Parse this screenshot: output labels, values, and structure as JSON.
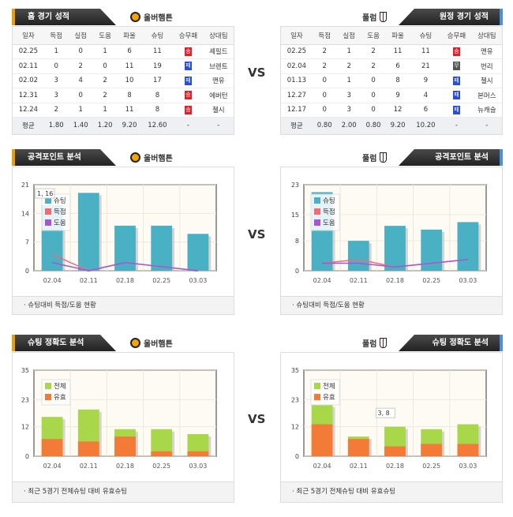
{
  "vs": "VS",
  "home_team": "울버햄튼",
  "away_team": "풀럼",
  "home_table": {
    "title": "홈 경기 성적",
    "columns": [
      "일자",
      "득점",
      "실점",
      "도움",
      "파울",
      "슈팅",
      "승무패",
      "상대팀"
    ],
    "rows": [
      [
        "02.25",
        "1",
        "0",
        "1",
        "6",
        "11",
        "승",
        "셰필드"
      ],
      [
        "02.11",
        "0",
        "2",
        "0",
        "11",
        "19",
        "패",
        "브렌트"
      ],
      [
        "02.02",
        "3",
        "4",
        "2",
        "10",
        "17",
        "패",
        "맨유"
      ],
      [
        "12.31",
        "3",
        "0",
        "2",
        "8",
        "8",
        "승",
        "에버턴"
      ],
      [
        "12.24",
        "2",
        "1",
        "1",
        "11",
        "8",
        "승",
        "첼시"
      ]
    ],
    "avg": [
      "평균",
      "1.80",
      "1.40",
      "1.20",
      "9.20",
      "12.60",
      "-",
      "-"
    ]
  },
  "away_table": {
    "title": "원정 경기 성적",
    "columns": [
      "일자",
      "득점",
      "실점",
      "도움",
      "파울",
      "슈팅",
      "승무패",
      "상대팀"
    ],
    "rows": [
      [
        "02.25",
        "2",
        "1",
        "2",
        "11",
        "11",
        "승",
        "맨유"
      ],
      [
        "02.04",
        "2",
        "2",
        "2",
        "6",
        "21",
        "무",
        "번리"
      ],
      [
        "01.13",
        "0",
        "1",
        "0",
        "8",
        "9",
        "패",
        "첼시"
      ],
      [
        "12.27",
        "0",
        "3",
        "0",
        "9",
        "4",
        "패",
        "본머스"
      ],
      [
        "12.17",
        "0",
        "3",
        "0",
        "12",
        "6",
        "패",
        "뉴캐슬"
      ]
    ],
    "avg": [
      "평균",
      "0.80",
      "2.00",
      "0.80",
      "9.20",
      "10.20",
      "-",
      "-"
    ]
  },
  "result_colors": {
    "승": "#e0202a",
    "패": "#2a4fd6",
    "무": "#555555"
  },
  "attack_title": "공격포인트 분석",
  "accuracy_title": "슈팅 정확도 분석",
  "attack_footer": "슈팅대비 득점/도움 현황",
  "accuracy_footer": "최근 5경기 전체슈팅 대비 유효슈팅",
  "chart_data": [
    {
      "type": "bar+line",
      "team": "울버햄튼",
      "categories": [
        "02.04",
        "02.11",
        "02.18",
        "02.25",
        "03.03"
      ],
      "yticks": [
        0,
        7,
        14,
        21
      ],
      "ylim": [
        0,
        21
      ],
      "legend": "top-left",
      "series": [
        {
          "name": "슈팅",
          "kind": "bar",
          "color": "#4ab0c4",
          "values": [
            16,
            19,
            11,
            11,
            9
          ]
        },
        {
          "name": "득점",
          "kind": "line",
          "color": "#f06a78",
          "values": [
            4,
            0,
            2,
            1,
            0
          ]
        },
        {
          "name": "도움",
          "kind": "line",
          "color": "#a855d4",
          "values": [
            2,
            0,
            2,
            1,
            0
          ]
        }
      ],
      "tooltip": "1, 16"
    },
    {
      "type": "bar+line",
      "team": "풀럼",
      "categories": [
        "02.04",
        "02.11",
        "02.18",
        "02.25",
        "03.03"
      ],
      "yticks": [
        0,
        8,
        15,
        23
      ],
      "ylim": [
        0,
        23
      ],
      "legend": "top-left",
      "series": [
        {
          "name": "슈팅",
          "kind": "bar",
          "color": "#4ab0c4",
          "values": [
            21,
            8,
            12,
            11,
            13
          ]
        },
        {
          "name": "득점",
          "kind": "line",
          "color": "#f06a78",
          "values": [
            2,
            3,
            1,
            2,
            3
          ]
        },
        {
          "name": "도움",
          "kind": "line",
          "color": "#a855d4",
          "values": [
            2,
            2,
            1,
            2,
            3
          ]
        }
      ]
    },
    {
      "type": "stacked-bar",
      "team": "울버햄튼",
      "categories": [
        "02.04",
        "02.11",
        "02.18",
        "02.25",
        "03.03"
      ],
      "yticks": [
        0,
        12,
        23,
        35
      ],
      "ylim": [
        0,
        35
      ],
      "legend": "top-left",
      "series": [
        {
          "name": "전체",
          "kind": "bar",
          "color": "#a8d84a",
          "values": [
            16,
            19,
            11,
            11,
            9
          ]
        },
        {
          "name": "유효",
          "kind": "bar",
          "color": "#f47a38",
          "values": [
            7,
            6,
            8,
            2,
            2
          ]
        }
      ]
    },
    {
      "type": "stacked-bar",
      "team": "풀럼",
      "categories": [
        "02.04",
        "02.11",
        "02.18",
        "02.25",
        "03.03"
      ],
      "yticks": [
        0,
        12,
        23,
        35
      ],
      "ylim": [
        0,
        35
      ],
      "legend": "top-left",
      "series": [
        {
          "name": "전체",
          "kind": "bar",
          "color": "#a8d84a",
          "values": [
            21,
            8,
            12,
            11,
            13
          ]
        },
        {
          "name": "유효",
          "kind": "bar",
          "color": "#f47a38",
          "values": [
            13,
            7,
            4,
            5,
            5
          ]
        }
      ],
      "tooltip": "3, 8"
    }
  ]
}
